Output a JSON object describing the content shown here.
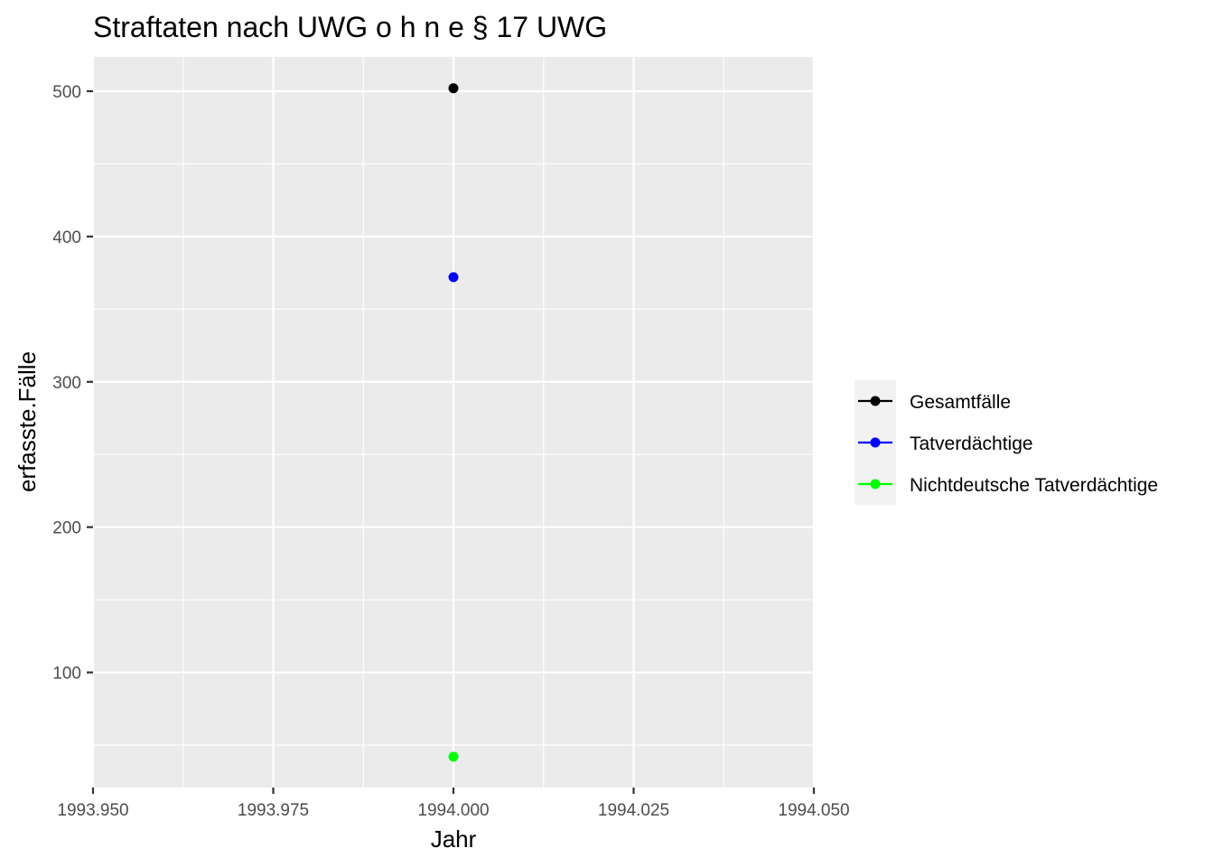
{
  "chart_data": {
    "type": "scatter",
    "title": "Straftaten nach UWG o h n e § 17 UWG",
    "xlabel": "Jahr",
    "ylabel": "erfasste.Fälle",
    "xlim": [
      1993.95,
      1994.05
    ],
    "ylim": [
      20.8,
      523.6
    ],
    "x_ticks": [
      1993.95,
      1993.975,
      1994.0,
      1994.025,
      1994.05
    ],
    "x_tick_labels": [
      "1993.950",
      "1993.975",
      "1994.000",
      "1994.025",
      "1994.050"
    ],
    "y_ticks": [
      100,
      200,
      300,
      400,
      500
    ],
    "y_tick_labels": [
      "100",
      "200",
      "300",
      "400",
      "500"
    ],
    "grid": true,
    "legend_position": "right",
    "series": [
      {
        "name": "Gesamtfälle",
        "color": "#000000",
        "x": [
          1994
        ],
        "values": [
          502
        ]
      },
      {
        "name": "Tatverdächtige",
        "color": "#0000ff",
        "x": [
          1994
        ],
        "values": [
          372
        ]
      },
      {
        "name": "Nichtdeutsche Tatverdächtige",
        "color": "#00ff00",
        "x": [
          1994
        ],
        "values": [
          42
        ]
      }
    ]
  }
}
